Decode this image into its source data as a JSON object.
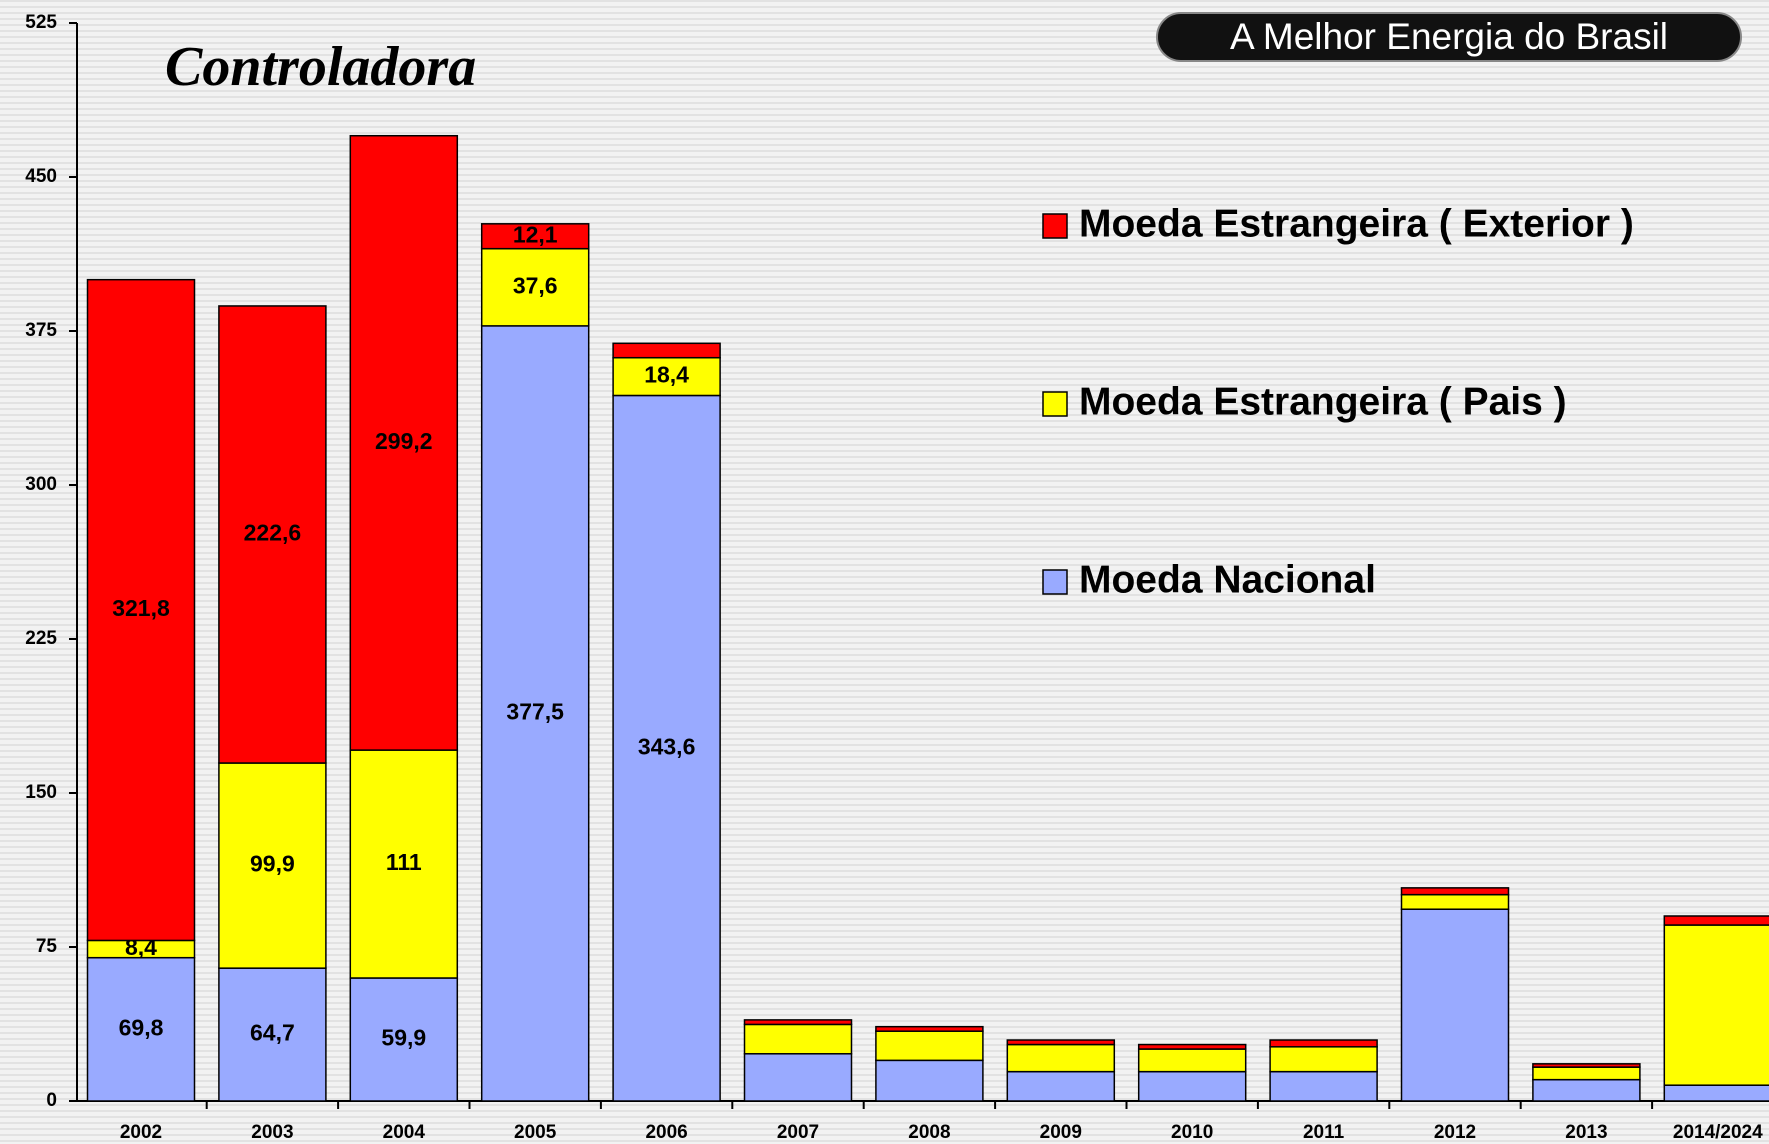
{
  "chart_data": {
    "type": "bar",
    "stacked": true,
    "title": "Controladora",
    "logo": "A Melhor Energia do Brasil",
    "categories": [
      "2002",
      "2003",
      "2004",
      "2005",
      "2006",
      "2007",
      "2008",
      "2009",
      "2010",
      "2011",
      "2012",
      "2013",
      "2014/2024"
    ],
    "series": [
      {
        "name": "Moeda Nacional",
        "color": "#99aaff",
        "values": [
          69.8,
          64.7,
          59.9,
          377.5,
          343.6,
          23,
          19.8,
          14.3,
          14.3,
          14.3,
          93.4,
          10.4,
          7.7
        ],
        "value_labels": [
          "69,8",
          "64,7",
          "59,9",
          "377,5",
          "343,6",
          null,
          null,
          null,
          null,
          null,
          null,
          null,
          null
        ]
      },
      {
        "name": "Moeda Estrangeira ( Pais )",
        "color": "#ffff00",
        "values": [
          8.4,
          99.9,
          111,
          37.6,
          18.4,
          14.3,
          14.2,
          13.2,
          11,
          12.1,
          7.1,
          6.1,
          78
        ],
        "value_labels": [
          "8,4",
          "99,9",
          "111",
          "37,6",
          "18,4",
          null,
          null,
          null,
          null,
          null,
          null,
          null,
          null
        ]
      },
      {
        "name": "Moeda Estrangeira ( Exterior )",
        "color": "#ff0000",
        "values": [
          321.8,
          222.6,
          299.2,
          12.1,
          7,
          2.2,
          2.2,
          2.2,
          2.2,
          3.3,
          3.3,
          1.6,
          4.4
        ],
        "value_labels": [
          "321,8",
          "222,6",
          "299,2",
          "12,1",
          null,
          null,
          null,
          null,
          null,
          null,
          null,
          null,
          null
        ]
      }
    ],
    "ylim": [
      0,
      525
    ],
    "yticks": [
      0,
      75,
      150,
      225,
      300,
      375,
      450,
      525
    ]
  }
}
